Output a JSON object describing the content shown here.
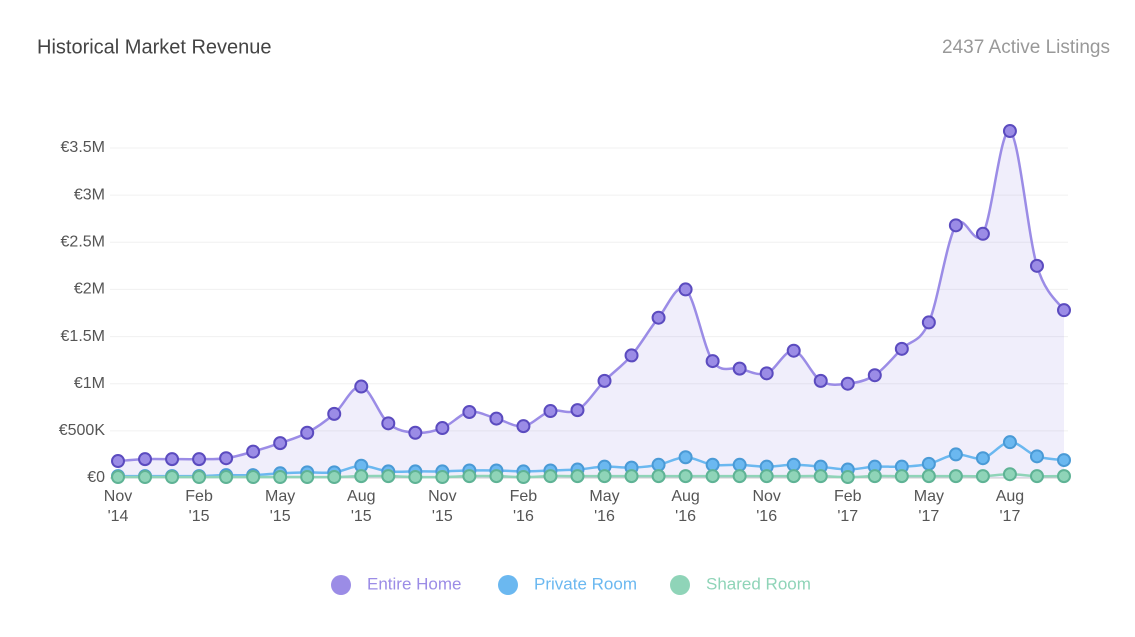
{
  "chart_data": {
    "type": "line",
    "title": "Historical Market Revenue",
    "subtitle": "2437 Active Listings",
    "categories": [
      "Nov '14",
      null,
      null,
      "Feb '15",
      null,
      null,
      "May '15",
      null,
      null,
      "Aug '15",
      null,
      null,
      "Nov '15",
      null,
      null,
      "Feb '16",
      null,
      null,
      "May '16",
      null,
      null,
      "Aug '16",
      null,
      null,
      "Nov '16",
      null,
      null,
      "Feb '17",
      null,
      null,
      "May '17",
      null,
      null,
      "Aug '17",
      null,
      null
    ],
    "series": [
      {
        "name": "Entire Home",
        "color": "#9b8ce6",
        "values": [
          180000,
          200000,
          200000,
          200000,
          210000,
          280000,
          370000,
          480000,
          680000,
          970000,
          580000,
          480000,
          530000,
          700000,
          630000,
          550000,
          710000,
          720000,
          1030000,
          1300000,
          1700000,
          2000000,
          1240000,
          1160000,
          1110000,
          1350000,
          1030000,
          1000000,
          1090000,
          1370000,
          1650000,
          2680000,
          2590000,
          3680000,
          2250000,
          1780000
        ]
      },
      {
        "name": "Private Room",
        "color": "#6bb8f0",
        "values": [
          20000,
          20000,
          20000,
          20000,
          30000,
          30000,
          50000,
          60000,
          60000,
          130000,
          70000,
          70000,
          70000,
          80000,
          80000,
          70000,
          80000,
          90000,
          120000,
          110000,
          140000,
          220000,
          140000,
          140000,
          120000,
          140000,
          120000,
          90000,
          120000,
          120000,
          150000,
          250000,
          210000,
          380000,
          230000,
          190000
        ]
      },
      {
        "name": "Shared Room",
        "color": "#8fd4b8",
        "values": [
          10000,
          10000,
          10000,
          10000,
          10000,
          10000,
          10000,
          10000,
          10000,
          20000,
          20000,
          10000,
          10000,
          20000,
          20000,
          10000,
          20000,
          20000,
          20000,
          20000,
          20000,
          20000,
          20000,
          20000,
          20000,
          20000,
          20000,
          10000,
          20000,
          20000,
          20000,
          20000,
          20000,
          40000,
          20000,
          20000
        ]
      }
    ],
    "ylim": [
      0,
      3500000
    ],
    "yticks": [
      {
        "value": 0,
        "label": "€0"
      },
      {
        "value": 500000,
        "label": "€500K"
      },
      {
        "value": 1000000,
        "label": "€1M"
      },
      {
        "value": 1500000,
        "label": "€1.5M"
      },
      {
        "value": 2000000,
        "label": "€2M"
      },
      {
        "value": 2500000,
        "label": "€2.5M"
      },
      {
        "value": 3000000,
        "label": "€3M"
      },
      {
        "value": 3500000,
        "label": "€3.5M"
      }
    ],
    "grid": true,
    "legend": "bottom"
  }
}
